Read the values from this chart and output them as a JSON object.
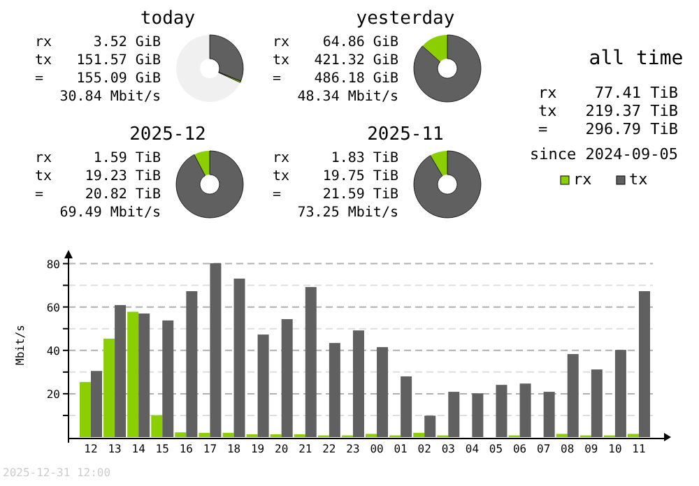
{
  "chart_data": [
    {
      "type": "donut",
      "title": "today",
      "categories": [
        null,
        null,
        null
      ],
      "values": [
        68.1,
        0.72,
        31.18
      ],
      "colors": [
        "#f0f0f0",
        "#8ccf00",
        "#606060"
      ],
      "annotations": [
        "rx 3.52 GiB",
        "tx 151.57 GiB",
        "= 155.09 GiB",
        "30.84 Mbit/s"
      ]
    },
    {
      "type": "donut",
      "title": "yesterday",
      "categories": [
        null,
        null
      ],
      "values": [
        13.34,
        86.66
      ],
      "colors": [
        "#8ccf00",
        "#606060"
      ],
      "annotations": [
        "rx 64.86 GiB",
        "tx 421.32 GiB",
        "= 486.18 GiB",
        "48.34 Mbit/s"
      ]
    },
    {
      "type": "other",
      "title": "all time",
      "annotations": [
        "rx 77.41 TiB",
        "tx 219.37 TiB",
        "= 296.79 TiB",
        "since 2024-09-05"
      ]
    },
    {
      "type": "donut",
      "title": "2025-12",
      "categories": [
        null,
        null
      ],
      "values": [
        7.64,
        92.36
      ],
      "colors": [
        "#8ccf00",
        "#606060"
      ],
      "annotations": [
        "rx 1.59 TiB",
        "tx 19.23 TiB",
        "= 20.82 TiB",
        "69.49 Mbit/s"
      ]
    },
    {
      "type": "donut",
      "title": "2025-11",
      "categories": [
        null,
        null
      ],
      "values": [
        8.48,
        91.52
      ],
      "colors": [
        "#8ccf00",
        "#606060"
      ],
      "annotations": [
        "rx 1.83 TiB",
        "tx 19.75 TiB",
        "= 21.59 TiB",
        "73.25 Mbit/s"
      ]
    },
    {
      "type": "bar",
      "ylabel": "Mbit/s",
      "categories": [
        "12",
        "13",
        "14",
        "15",
        "16",
        "17",
        "18",
        "19",
        "20",
        "21",
        "22",
        "23",
        "00",
        "01",
        "02",
        "03",
        "04",
        "05",
        "06",
        "07",
        "08",
        "09",
        "10",
        "11"
      ],
      "series": [
        {
          "name": "rx",
          "color": "#8ccf00",
          "values": [
            25.4,
            45.4,
            57.8,
            10.1,
            2.2,
            2,
            2,
            1.3,
            1.3,
            1.3,
            0.8,
            0.8,
            1.5,
            0.8,
            2,
            0.8,
            0,
            0,
            0.8,
            0,
            1.5,
            0.8,
            0.8,
            1.5
          ]
        },
        {
          "name": "tx",
          "color": "#606060",
          "values": [
            30.5,
            60.9,
            57,
            53.8,
            67.3,
            80.2,
            73.1,
            47.3,
            54.4,
            69.2,
            43.4,
            49.2,
            41.5,
            28,
            9.9,
            20.9,
            20.2,
            24.1,
            24.7,
            20.9,
            38.3,
            31.2,
            40.2,
            67.3
          ]
        }
      ],
      "ylim": [
        0,
        85
      ],
      "yticks": [
        {
          "value": 10,
          "label": null
        },
        20,
        {
          "value": 30,
          "label": null
        },
        40,
        {
          "value": 50,
          "label": null
        },
        60,
        {
          "value": 70,
          "label": null
        },
        80
      ],
      "grid": "y",
      "legend": "top right",
      "annotations": [
        "2025-12-31 12:00"
      ]
    }
  ]
}
